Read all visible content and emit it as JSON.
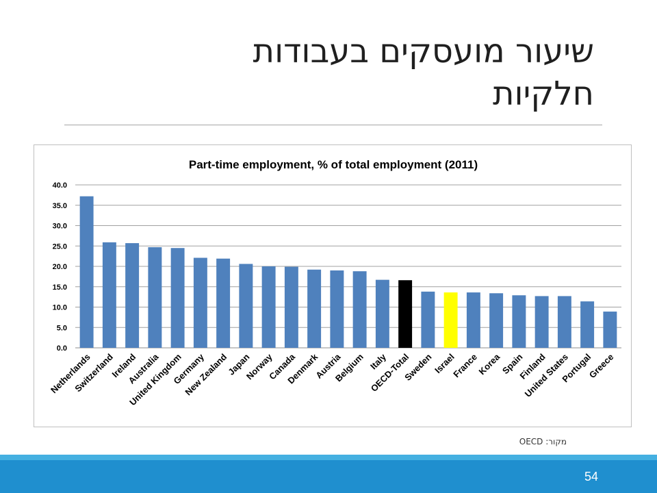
{
  "slide": {
    "title_line1": "שיעור מועסקים בעבודות",
    "title_line2": "חלקיות",
    "source": "מקור: OECD",
    "page_number": "54"
  },
  "chart_data": {
    "type": "bar",
    "title": "Part-time  employment,  % of total employment (2011)",
    "xlabel": "",
    "ylabel": "",
    "ylim": [
      0,
      40
    ],
    "yticks": [
      "0.0",
      "5.0",
      "10.0",
      "15.0",
      "20.0",
      "25.0",
      "30.0",
      "35.0",
      "40.0"
    ],
    "grid": true,
    "legend": "none",
    "categories": [
      "Netherlands",
      "Switzerland",
      "Ireland",
      "Australia",
      "United Kingdom",
      "Germany",
      "New Zealand",
      "Japan",
      "Norway",
      "Canada",
      "Denmark",
      "Austria",
      "Belgium",
      "Italy",
      "OECD-Total",
      "Sweden",
      "Israel",
      "France",
      "Korea",
      "Spain",
      "Finland",
      "United States",
      "Portugal",
      "Greece"
    ],
    "values": [
      37.2,
      25.9,
      25.7,
      24.7,
      24.5,
      22.1,
      21.9,
      20.6,
      20.0,
      19.9,
      19.2,
      19.0,
      18.8,
      16.7,
      16.6,
      13.8,
      13.6,
      13.6,
      13.4,
      12.9,
      12.7,
      12.7,
      11.4,
      8.9
    ],
    "colors": {
      "default": "#4f81bd",
      "OECD-Total": "#000000",
      "Israel": "#ffff00"
    }
  }
}
